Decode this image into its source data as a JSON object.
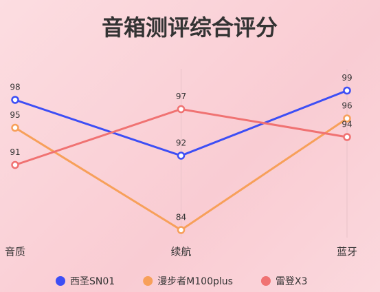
{
  "chart_data": {
    "type": "line",
    "title": "音箱测评综合评分",
    "categories": [
      "音质",
      "续航",
      "蓝牙"
    ],
    "series": [
      {
        "name": "西圣SN01",
        "color": "#3d4ef5",
        "values": [
          98,
          92,
          99
        ]
      },
      {
        "name": "漫步者M100plus",
        "color": "#f7a05a",
        "values": [
          95,
          84,
          96
        ]
      },
      {
        "name": "雷登X3",
        "color": "#f07272",
        "values": [
          91,
          97,
          94
        ]
      }
    ],
    "ylim": [
      82,
      100
    ],
    "xgrid": true
  }
}
